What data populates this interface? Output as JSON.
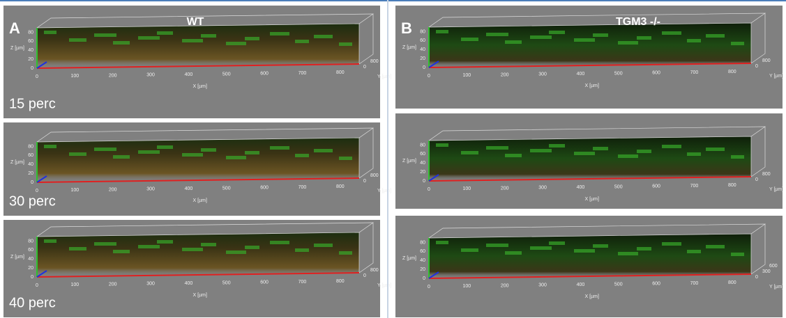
{
  "panels": [
    {
      "letter": "A",
      "genotype": "WT",
      "rows": [
        {
          "label": "15 perc",
          "y_ticks": [
            0,
            800
          ]
        },
        {
          "label": "30 perc",
          "y_ticks": [
            0,
            800
          ]
        },
        {
          "label": "40 perc",
          "y_ticks": [
            0,
            800
          ]
        }
      ]
    },
    {
      "letter": "B",
      "genotype": "TGM3 -/-",
      "rows": [
        {
          "y_ticks": [
            0,
            800
          ]
        },
        {
          "y_ticks": [
            0,
            800
          ]
        },
        {
          "y_ticks": [
            0,
            300,
            600
          ]
        }
      ]
    }
  ],
  "axes": {
    "x_label": "X [µm]",
    "y_label": "Y [µm]",
    "z_label": "Z [µm]",
    "x_ticks": [
      0,
      100,
      200,
      300,
      400,
      500,
      600,
      700,
      800
    ],
    "z_ticks": [
      0,
      20,
      40,
      60,
      80
    ]
  }
}
